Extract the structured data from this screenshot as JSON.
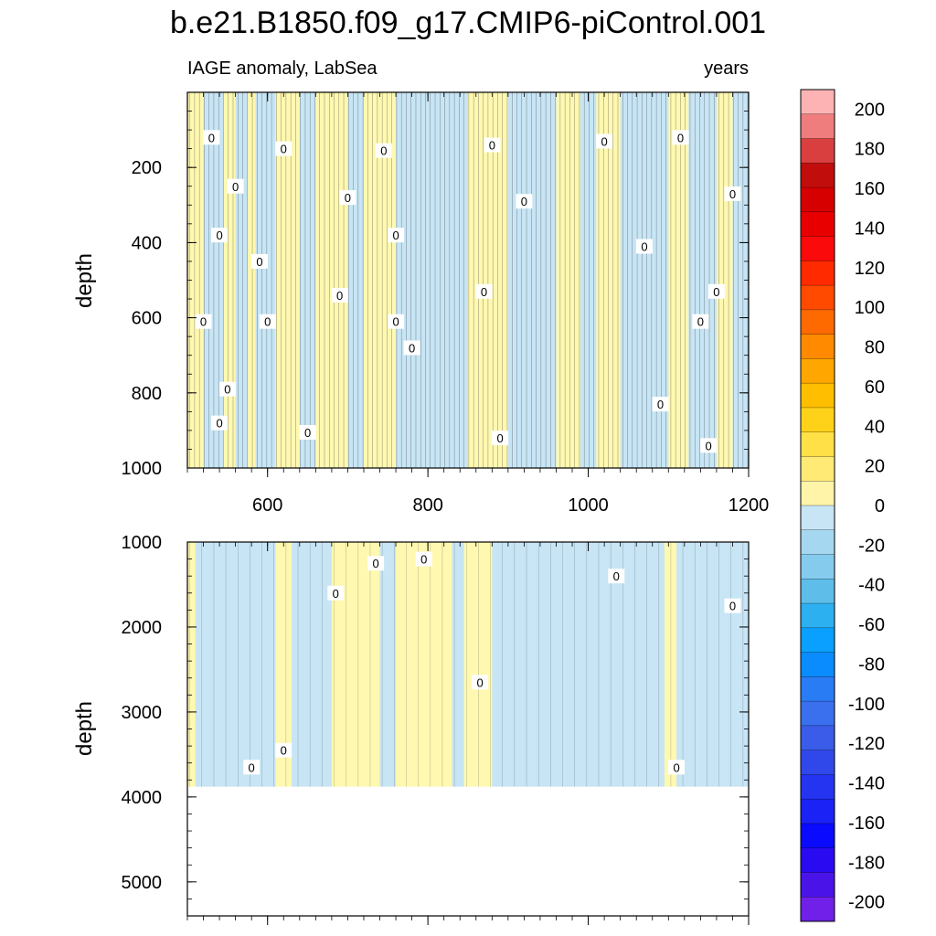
{
  "chart_data": {
    "type": "heatmap",
    "title": "b.e21.B1850.f09_g17.CMIP6-piControl.001",
    "subtitle_left": "IAGE anomaly, LabSea",
    "subtitle_right": "years",
    "xlim": [
      500,
      1200
    ],
    "x_ticks": [
      600,
      800,
      1000,
      1200
    ],
    "x_tick_labels": [
      "600",
      "800",
      "1000",
      "1200"
    ],
    "contour_label": "0",
    "panels": [
      {
        "name": "upper",
        "ylabel": "depth",
        "ylim": [
          0,
          1000
        ],
        "y_ticks": [
          200,
          400,
          600,
          800,
          1000
        ],
        "y_tick_labels": [
          "200",
          "400",
          "600",
          "800",
          "1000"
        ],
        "fill_zero_to_neg20": "#c7e5f5",
        "fill_zero_to_pos20": "#fff8b0",
        "positive_time_bands": [
          [
            500,
            520
          ],
          [
            545,
            560
          ],
          [
            575,
            585
          ],
          [
            610,
            640
          ],
          [
            660,
            700
          ],
          [
            720,
            760
          ],
          [
            850,
            900
          ],
          [
            960,
            990
          ],
          [
            1010,
            1040
          ],
          [
            1100,
            1125
          ],
          [
            1160,
            1180
          ]
        ],
        "contour_labels": [
          [
            530,
            120
          ],
          [
            620,
            150
          ],
          [
            745,
            155
          ],
          [
            880,
            140
          ],
          [
            1020,
            130
          ],
          [
            1115,
            120
          ],
          [
            560,
            250
          ],
          [
            700,
            280
          ],
          [
            920,
            290
          ],
          [
            1180,
            270
          ],
          [
            540,
            380
          ],
          [
            760,
            380
          ],
          [
            1070,
            410
          ],
          [
            590,
            450
          ],
          [
            690,
            540
          ],
          [
            870,
            530
          ],
          [
            1160,
            530
          ],
          [
            520,
            610
          ],
          [
            600,
            610
          ],
          [
            760,
            610
          ],
          [
            1140,
            610
          ],
          [
            550,
            790
          ],
          [
            780,
            680
          ],
          [
            1090,
            830
          ],
          [
            540,
            880
          ],
          [
            650,
            905
          ],
          [
            890,
            920
          ],
          [
            1150,
            940
          ]
        ]
      },
      {
        "name": "lower",
        "ylabel": "depth",
        "ylim": [
          1000,
          5400
        ],
        "y_ticks": [
          1000,
          2000,
          3000,
          4000,
          5000
        ],
        "y_tick_labels": [
          "1000",
          "2000",
          "3000",
          "4000",
          "5000"
        ],
        "data_bottom_depth": 3880,
        "fill_zero_to_neg20": "#c7e5f5",
        "fill_zero_to_pos20": "#fff8b0",
        "positive_time_bands": [
          [
            500,
            510
          ],
          [
            610,
            630
          ],
          [
            680,
            740
          ],
          [
            760,
            830
          ],
          [
            845,
            880
          ],
          [
            1095,
            1110
          ]
        ],
        "contour_labels": [
          [
            735,
            1250
          ],
          [
            795,
            1200
          ],
          [
            685,
            1600
          ],
          [
            1035,
            1400
          ],
          [
            1180,
            1750
          ],
          [
            865,
            2650
          ],
          [
            580,
            3650
          ],
          [
            620,
            3450
          ],
          [
            1110,
            3650
          ]
        ]
      }
    ],
    "colorbar": {
      "levels": [
        200,
        180,
        160,
        140,
        120,
        100,
        80,
        60,
        40,
        20,
        0,
        -20,
        -40,
        -60,
        -80,
        -100,
        -120,
        -140,
        -160,
        -180,
        -200
      ],
      "tick_labels": [
        "200",
        "180",
        "160",
        "140",
        "120",
        "100",
        "80",
        "60",
        "40",
        "20",
        "0",
        "-20",
        "-40",
        "-60",
        "-80",
        "-100",
        "-120",
        "-140",
        "-160",
        "-180",
        "-200"
      ],
      "colors": [
        "#fdb3b3",
        "#f07d7d",
        "#d93f3f",
        "#c20d0d",
        "#d60000",
        "#e80000",
        "#fa0a0a",
        "#ff2a00",
        "#ff4a00",
        "#ff6a00",
        "#ff8a00",
        "#ffa600",
        "#ffbf00",
        "#ffd21a",
        "#ffe047",
        "#ffea75",
        "#fff4a8",
        "#c7e5f5",
        "#a5d8f0",
        "#85cbee",
        "#5fbde9",
        "#2cb0f0",
        "#0aa0ff",
        "#0a8cff",
        "#2a7cf5",
        "#3a70ee",
        "#3a5ce8",
        "#3048ea",
        "#2434f0",
        "#1a22f5",
        "#0a0aff",
        "#2a0af0",
        "#4a14e8",
        "#7020e8"
      ]
    }
  }
}
